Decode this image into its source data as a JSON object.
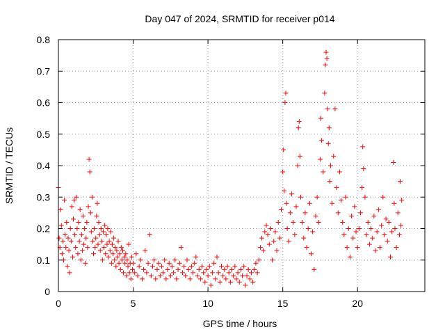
{
  "chart_data": {
    "type": "scatter",
    "title": "Day 047 of 2024, SRMTID for receiver p014",
    "xlabel": "GPS time / hours",
    "ylabel": "SRMTID / TECUs",
    "xlim": [
      0,
      24.5
    ],
    "ylim": [
      0,
      0.8
    ],
    "x_ticks": [
      0,
      5,
      10,
      15,
      20
    ],
    "x_tick_labels": [
      "0",
      "5",
      "10",
      "15",
      "20"
    ],
    "y_ticks": [
      0,
      0.1,
      0.2,
      0.3,
      0.4,
      0.5,
      0.6,
      0.7,
      0.8
    ],
    "y_tick_labels": [
      "0",
      "0.1",
      "0.2",
      "0.3",
      "0.4",
      "0.5",
      "0.6",
      "0.7",
      "0.8"
    ],
    "grid": true,
    "marker": "+",
    "color": "#ff0000",
    "series": [
      {
        "name": "SRMTID",
        "points": [
          [
            0.0,
            0.33
          ],
          [
            0.05,
            0.17
          ],
          [
            0.1,
            0.14
          ],
          [
            0.15,
            0.26
          ],
          [
            0.2,
            0.21
          ],
          [
            0.25,
            0.12
          ],
          [
            0.3,
            0.16
          ],
          [
            0.35,
            0.1
          ],
          [
            0.4,
            0.29
          ],
          [
            0.45,
            0.18
          ],
          [
            0.5,
            0.14
          ],
          [
            0.55,
            0.22
          ],
          [
            0.6,
            0.08
          ],
          [
            0.65,
            0.17
          ],
          [
            0.7,
            0.13
          ],
          [
            0.75,
            0.06
          ],
          [
            0.8,
            0.2
          ],
          [
            0.85,
            0.16
          ],
          [
            0.9,
            0.27
          ],
          [
            0.95,
            0.11
          ],
          [
            1.0,
            0.23
          ],
          [
            1.05,
            0.29
          ],
          [
            1.1,
            0.18
          ],
          [
            1.15,
            0.14
          ],
          [
            1.2,
            0.3
          ],
          [
            1.25,
            0.2
          ],
          [
            1.3,
            0.12
          ],
          [
            1.35,
            0.22
          ],
          [
            1.4,
            0.16
          ],
          [
            1.45,
            0.26
          ],
          [
            1.5,
            0.1
          ],
          [
            1.55,
            0.18
          ],
          [
            1.6,
            0.13
          ],
          [
            1.65,
            0.24
          ],
          [
            1.7,
            0.15
          ],
          [
            1.75,
            0.2
          ],
          [
            1.8,
            0.09
          ],
          [
            1.85,
            0.17
          ],
          [
            1.9,
            0.22
          ],
          [
            1.95,
            0.14
          ],
          [
            2.0,
            0.27
          ],
          [
            2.05,
            0.42
          ],
          [
            2.1,
            0.38
          ],
          [
            2.15,
            0.25
          ],
          [
            2.2,
            0.19
          ],
          [
            2.25,
            0.3
          ],
          [
            2.3,
            0.16
          ],
          [
            2.35,
            0.12
          ],
          [
            2.4,
            0.2
          ],
          [
            2.45,
            0.14
          ],
          [
            2.5,
            0.17
          ],
          [
            2.55,
            0.24
          ],
          [
            2.6,
            0.28
          ],
          [
            2.65,
            0.15
          ],
          [
            2.7,
            0.22
          ],
          [
            2.75,
            0.18
          ],
          [
            2.8,
            0.13
          ],
          [
            2.85,
            0.2
          ],
          [
            2.9,
            0.16
          ],
          [
            2.95,
            0.1
          ],
          [
            3.0,
            0.19
          ],
          [
            3.05,
            0.14
          ],
          [
            3.1,
            0.21
          ],
          [
            3.15,
            0.12
          ],
          [
            3.2,
            0.18
          ],
          [
            3.25,
            0.15
          ],
          [
            3.3,
            0.2
          ],
          [
            3.35,
            0.11
          ],
          [
            3.4,
            0.16
          ],
          [
            3.45,
            0.13
          ],
          [
            3.5,
            0.19
          ],
          [
            3.55,
            0.09
          ],
          [
            3.6,
            0.15
          ],
          [
            3.65,
            0.12
          ],
          [
            3.7,
            0.17
          ],
          [
            3.75,
            0.1
          ],
          [
            3.8,
            0.14
          ],
          [
            3.85,
            0.08
          ],
          [
            3.9,
            0.13
          ],
          [
            3.95,
            0.11
          ],
          [
            4.0,
            0.16
          ],
          [
            4.05,
            0.09
          ],
          [
            4.1,
            0.12
          ],
          [
            4.15,
            0.07
          ],
          [
            4.2,
            0.14
          ],
          [
            4.25,
            0.1
          ],
          [
            4.3,
            0.13
          ],
          [
            4.35,
            0.06
          ],
          [
            4.4,
            0.11
          ],
          [
            4.45,
            0.09
          ],
          [
            4.5,
            0.12
          ],
          [
            4.55,
            0.05
          ],
          [
            4.6,
            0.1
          ],
          [
            4.65,
            0.08
          ],
          [
            4.7,
            0.15
          ],
          [
            4.75,
            0.06
          ],
          [
            4.8,
            0.09
          ],
          [
            4.85,
            0.04
          ],
          [
            4.9,
            0.11
          ],
          [
            4.95,
            0.07
          ],
          [
            5.0,
            0.09
          ],
          [
            5.1,
            0.06
          ],
          [
            5.2,
            0.12
          ],
          [
            5.3,
            0.05
          ],
          [
            5.4,
            0.08
          ],
          [
            5.5,
            0.1
          ],
          [
            5.6,
            0.04
          ],
          [
            5.7,
            0.07
          ],
          [
            5.8,
            0.13
          ],
          [
            5.9,
            0.06
          ],
          [
            6.0,
            0.09
          ],
          [
            6.1,
            0.18
          ],
          [
            6.2,
            0.05
          ],
          [
            6.3,
            0.08
          ],
          [
            6.4,
            0.1
          ],
          [
            6.5,
            0.04
          ],
          [
            6.6,
            0.07
          ],
          [
            6.7,
            0.09
          ],
          [
            6.8,
            0.05
          ],
          [
            6.9,
            0.08
          ],
          [
            7.0,
            0.06
          ],
          [
            7.1,
            0.1
          ],
          [
            7.2,
            0.04
          ],
          [
            7.3,
            0.07
          ],
          [
            7.4,
            0.09
          ],
          [
            7.5,
            0.05
          ],
          [
            7.6,
            0.08
          ],
          [
            7.7,
            0.06
          ],
          [
            7.8,
            0.1
          ],
          [
            7.9,
            0.04
          ],
          [
            8.0,
            0.07
          ],
          [
            8.1,
            0.09
          ],
          [
            8.2,
            0.14
          ],
          [
            8.3,
            0.06
          ],
          [
            8.4,
            0.08
          ],
          [
            8.5,
            0.05
          ],
          [
            8.6,
            0.1
          ],
          [
            8.7,
            0.07
          ],
          [
            8.8,
            0.04
          ],
          [
            8.9,
            0.08
          ],
          [
            9.0,
            0.06
          ],
          [
            9.1,
            0.09
          ],
          [
            9.2,
            0.11
          ],
          [
            9.3,
            0.05
          ],
          [
            9.4,
            0.07
          ],
          [
            9.5,
            0.04
          ],
          [
            9.6,
            0.08
          ],
          [
            9.7,
            0.06
          ],
          [
            9.8,
            0.03
          ],
          [
            9.9,
            0.07
          ],
          [
            10.0,
            0.05
          ],
          [
            10.1,
            0.08
          ],
          [
            10.2,
            0.02
          ],
          [
            10.3,
            0.06
          ],
          [
            10.4,
            0.09
          ],
          [
            10.5,
            0.04
          ],
          [
            10.6,
            0.11
          ],
          [
            10.7,
            0.06
          ],
          [
            10.8,
            0.03
          ],
          [
            10.9,
            0.08
          ],
          [
            11.0,
            0.05
          ],
          [
            11.1,
            0.07
          ],
          [
            11.2,
            0.04
          ],
          [
            11.3,
            0.08
          ],
          [
            11.4,
            0.06
          ],
          [
            11.5,
            0.03
          ],
          [
            11.6,
            0.07
          ],
          [
            11.7,
            0.05
          ],
          [
            11.8,
            0.08
          ],
          [
            11.9,
            0.04
          ],
          [
            12.0,
            0.06
          ],
          [
            12.1,
            0.03
          ],
          [
            12.2,
            0.07
          ],
          [
            12.3,
            0.05
          ],
          [
            12.4,
            0.08
          ],
          [
            12.5,
            0.02
          ],
          [
            12.6,
            0.05
          ],
          [
            12.7,
            0.07
          ],
          [
            12.8,
            0.04
          ],
          [
            12.9,
            0.06
          ],
          [
            13.0,
            0.03
          ],
          [
            13.1,
            0.07
          ],
          [
            13.2,
            0.09
          ],
          [
            13.3,
            0.06
          ],
          [
            13.4,
            0.1
          ],
          [
            13.5,
            0.14
          ],
          [
            13.6,
            0.17
          ],
          [
            13.7,
            0.13
          ],
          [
            13.8,
            0.19
          ],
          [
            13.9,
            0.21
          ],
          [
            14.0,
            0.18
          ],
          [
            14.1,
            0.15
          ],
          [
            14.2,
            0.2
          ],
          [
            14.3,
            0.1
          ],
          [
            14.4,
            0.16
          ],
          [
            14.5,
            0.19
          ],
          [
            14.6,
            0.13
          ],
          [
            14.7,
            0.22
          ],
          [
            14.8,
            0.17
          ],
          [
            14.9,
            0.26
          ],
          [
            15.0,
            0.38
          ],
          [
            15.05,
            0.45
          ],
          [
            15.1,
            0.32
          ],
          [
            15.15,
            0.6
          ],
          [
            15.2,
            0.63
          ],
          [
            15.25,
            0.28
          ],
          [
            15.3,
            0.2
          ],
          [
            15.4,
            0.16
          ],
          [
            15.5,
            0.25
          ],
          [
            15.6,
            0.31
          ],
          [
            15.7,
            0.22
          ],
          [
            15.8,
            0.18
          ],
          [
            15.9,
            0.27
          ],
          [
            16.0,
            0.4
          ],
          [
            16.05,
            0.52
          ],
          [
            16.1,
            0.54
          ],
          [
            16.15,
            0.43
          ],
          [
            16.2,
            0.3
          ],
          [
            16.3,
            0.22
          ],
          [
            16.4,
            0.17
          ],
          [
            16.5,
            0.25
          ],
          [
            16.6,
            0.14
          ],
          [
            16.7,
            0.2
          ],
          [
            16.8,
            0.28
          ],
          [
            16.9,
            0.12
          ],
          [
            17.0,
            0.19
          ],
          [
            17.1,
            0.07
          ],
          [
            17.2,
            0.24
          ],
          [
            17.3,
            0.3
          ],
          [
            17.4,
            0.22
          ],
          [
            17.5,
            0.42
          ],
          [
            17.55,
            0.55
          ],
          [
            17.6,
            0.48
          ],
          [
            17.7,
            0.38
          ],
          [
            17.8,
            0.63
          ],
          [
            17.85,
            0.72
          ],
          [
            17.9,
            0.76
          ],
          [
            17.95,
            0.74
          ],
          [
            18.0,
            0.58
          ],
          [
            18.05,
            0.47
          ],
          [
            18.1,
            0.52
          ],
          [
            18.15,
            0.35
          ],
          [
            18.2,
            0.4
          ],
          [
            18.3,
            0.28
          ],
          [
            18.4,
            0.43
          ],
          [
            18.5,
            0.58
          ],
          [
            18.6,
            0.33
          ],
          [
            18.7,
            0.25
          ],
          [
            18.8,
            0.38
          ],
          [
            18.9,
            0.29
          ],
          [
            19.0,
            0.22
          ],
          [
            19.1,
            0.18
          ],
          [
            19.2,
            0.3
          ],
          [
            19.3,
            0.14
          ],
          [
            19.4,
            0.2
          ],
          [
            19.5,
            0.11
          ],
          [
            19.6,
            0.24
          ],
          [
            19.7,
            0.17
          ],
          [
            19.8,
            0.27
          ],
          [
            19.9,
            0.19
          ],
          [
            20.0,
            0.14
          ],
          [
            20.1,
            0.2
          ],
          [
            20.2,
            0.25
          ],
          [
            20.3,
            0.33
          ],
          [
            20.35,
            0.46
          ],
          [
            20.4,
            0.39
          ],
          [
            20.5,
            0.3
          ],
          [
            20.6,
            0.18
          ],
          [
            20.7,
            0.22
          ],
          [
            20.8,
            0.15
          ],
          [
            20.9,
            0.2
          ],
          [
            21.0,
            0.17
          ],
          [
            21.1,
            0.24
          ],
          [
            21.2,
            0.13
          ],
          [
            21.3,
            0.19
          ],
          [
            21.4,
            0.26
          ],
          [
            21.5,
            0.14
          ],
          [
            21.6,
            0.21
          ],
          [
            21.7,
            0.3
          ],
          [
            21.8,
            0.18
          ],
          [
            21.9,
            0.23
          ],
          [
            22.0,
            0.16
          ],
          [
            22.1,
            0.22
          ],
          [
            22.2,
            0.11
          ],
          [
            22.3,
            0.19
          ],
          [
            22.4,
            0.41
          ],
          [
            22.45,
            0.28
          ],
          [
            22.5,
            0.2
          ],
          [
            22.6,
            0.14
          ],
          [
            22.7,
            0.25
          ],
          [
            22.8,
            0.18
          ],
          [
            22.85,
            0.35
          ],
          [
            22.9,
            0.21
          ],
          [
            22.95,
            0.29
          ]
        ]
      }
    ]
  }
}
